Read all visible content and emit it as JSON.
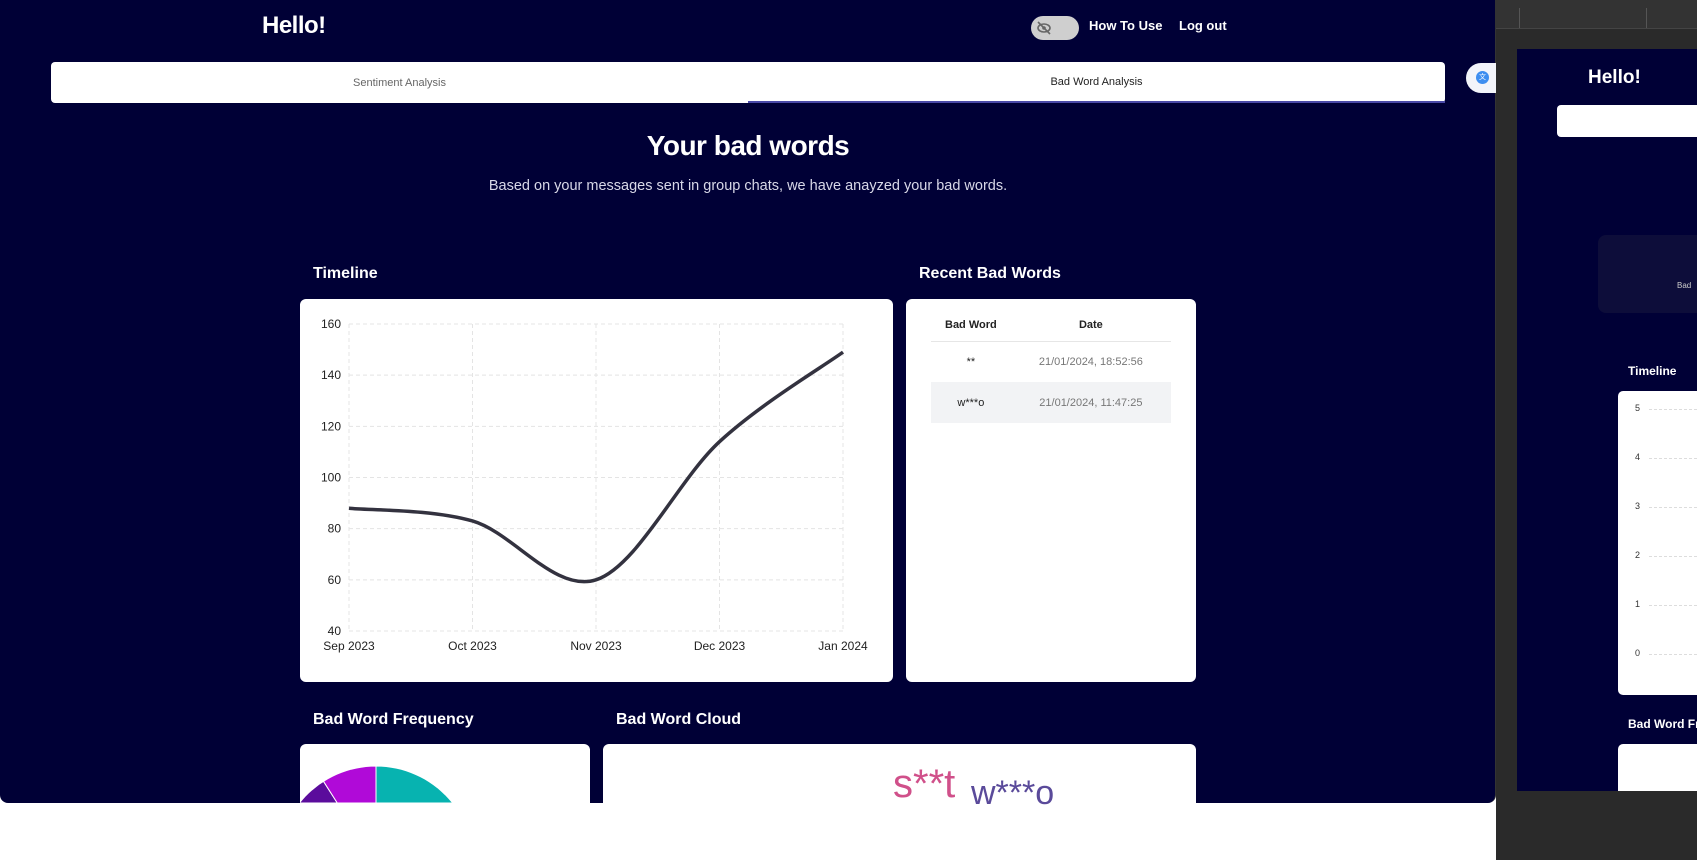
{
  "header": {
    "greeting": "Hello!",
    "privacy_toggle_icon": "eye-off-icon",
    "how_to_use": "How To Use",
    "logout": "Log out"
  },
  "tabs": [
    {
      "label": "Sentiment Analysis",
      "active": false
    },
    {
      "label": "Bad Word Analysis",
      "active": true
    }
  ],
  "translate_icon": "translate-icon",
  "page": {
    "title": "Your bad words",
    "subtitle": "Based on your messages sent in group chats, we have anayzed your bad words."
  },
  "sections": {
    "timeline": "Timeline",
    "recent": "Recent Bad Words",
    "frequency": "Bad Word Frequency",
    "cloud": "Bad Word Cloud"
  },
  "recent_table": {
    "headers": [
      "Bad Word",
      "Date"
    ],
    "rows": [
      {
        "word": "**",
        "date": "21/01/2024, 18:52:56"
      },
      {
        "word": "w***o",
        "date": "21/01/2024, 11:47:25"
      }
    ]
  },
  "chart_data": [
    {
      "type": "line",
      "x": [
        "Sep 2023",
        "Oct 2023",
        "Nov 2023",
        "Dec 2023",
        "Jan 2024"
      ],
      "values": [
        88,
        83,
        60,
        114,
        149
      ],
      "ylim": [
        40,
        160
      ],
      "yticks": [
        40,
        60,
        80,
        100,
        120,
        140,
        160
      ],
      "grid": true,
      "color": "#33323f"
    },
    {
      "type": "pie",
      "note_visible": "partially visible",
      "slices": [
        {
          "value": 0.8,
          "color": "#07b3b0"
        },
        {
          "value": 0.04,
          "color": "#2a33c8"
        },
        {
          "value": 0.07,
          "color": "#5b0c9c"
        },
        {
          "value": 0.09,
          "color": "#b00ad8"
        }
      ]
    }
  ],
  "word_cloud": [
    {
      "word": "s**t",
      "color": "#d0508a"
    },
    {
      "word": "w***o",
      "color": "#5a4a9a"
    }
  ],
  "side_window": {
    "greeting": "Hello!",
    "card_text": "Bad",
    "timeline": "Timeline",
    "yticks": [
      "5",
      "4",
      "3",
      "2",
      "1",
      "0"
    ],
    "frequency": "Bad Word Fr"
  }
}
